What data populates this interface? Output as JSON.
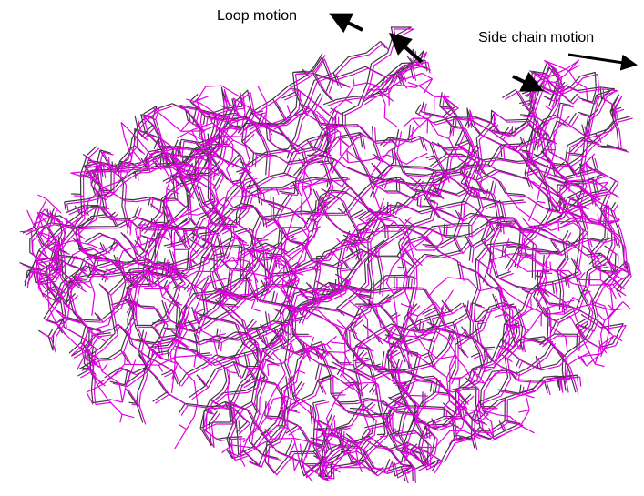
{
  "annotations": {
    "loop_motion": "Loop motion",
    "side_chain_motion": "Side chain motion"
  },
  "colors": {
    "background": "#ffffff",
    "structure_a": "#3a3a3a",
    "structure_b": "#e000e0",
    "arrow": "#000000"
  },
  "figure": {
    "subject": "superimposed protein backbone wireframe structures"
  }
}
